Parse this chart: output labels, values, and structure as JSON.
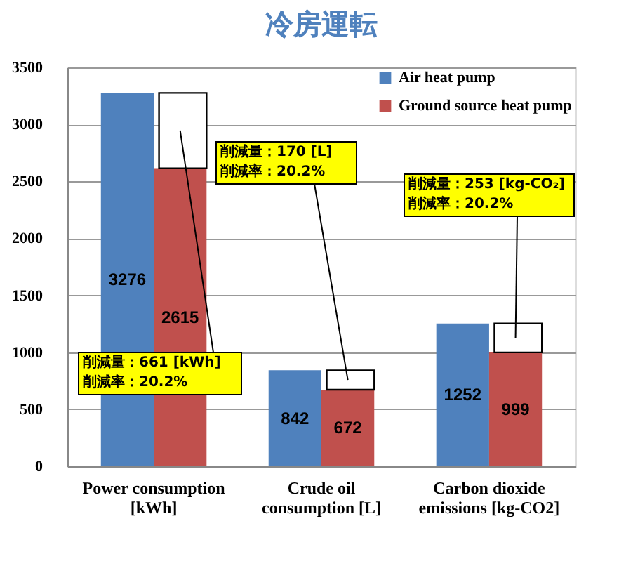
{
  "chart_data": {
    "type": "bar",
    "title": "冷房運転",
    "categories": [
      "Power consumption\n[kWh]",
      "Crude oil\nconsumption [L]",
      "Carbon dioxide\nemissions [kg-CO2]"
    ],
    "series": [
      {
        "name": "Air heat pump",
        "color": "#4f81bd",
        "values": [
          3276,
          842,
          1252
        ],
        "value_labels": [
          "3276",
          "842",
          "1252"
        ]
      },
      {
        "name": "Ground source heat pump",
        "color": "#c0504d",
        "values": [
          2615,
          672,
          999
        ],
        "value_labels": [
          "2615",
          "672",
          "999"
        ]
      },
      {
        "color": "#ffffff",
        "values": [
          661,
          170,
          253
        ],
        "base": [
          2615,
          672,
          999
        ]
      }
    ],
    "ylim": [
      0,
      3500
    ],
    "yticks": [
      0,
      500,
      1000,
      1500,
      2000,
      2500,
      3000,
      3500
    ],
    "grid": "y",
    "legend": "top right",
    "annotations": [
      "削減量：661 [kWh]\n削減率：20.2%",
      "削減量：170 [L]\n削減率：20.2%",
      "削減量：253 [kg-CO₂]\n削減率：20.2%"
    ]
  }
}
